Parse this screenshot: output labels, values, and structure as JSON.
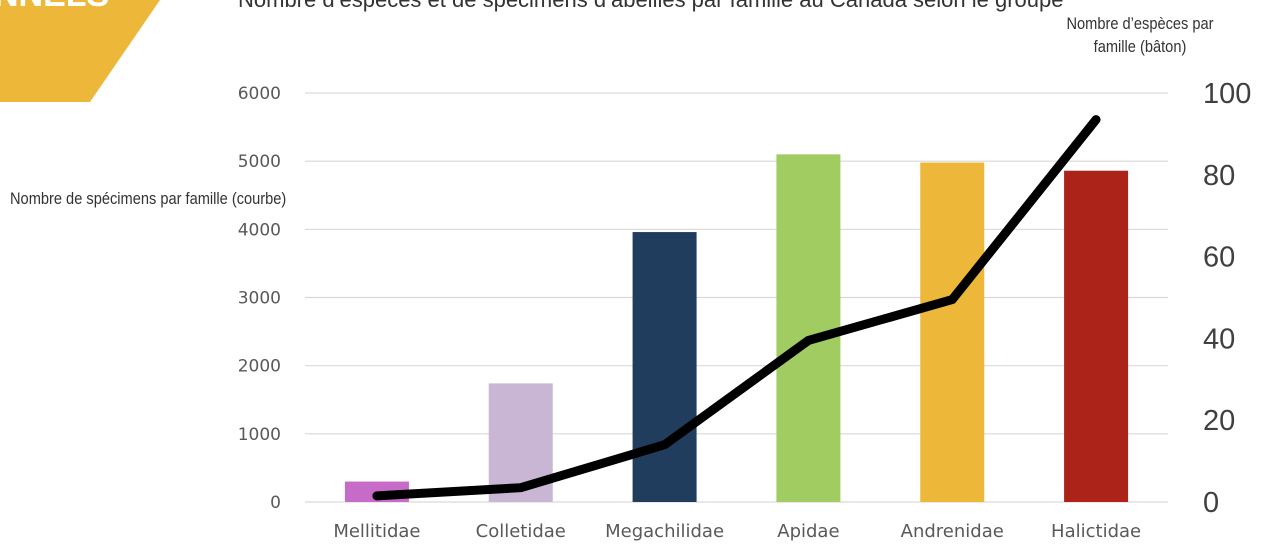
{
  "banner": {
    "text": "NNELS",
    "color": "#EDB83A"
  },
  "header_fragment": "Nombre d’espèces et de spécimens d’abeilles par famille au Canada selon le groupe",
  "chart_data": {
    "type": "bar",
    "categories": [
      "Mellitidae",
      "Colletidae",
      "Megachilidae",
      "Apidae",
      "Andrenidae",
      "Halictidae"
    ],
    "series": [
      {
        "type": "bar",
        "axis": "left",
        "values": [
          300,
          1740,
          3960,
          5100,
          4980,
          4860
        ],
        "colors": [
          "#C76BC9",
          "#C9B5D4",
          "#213D5E",
          "#A0CC62",
          "#EDB83A",
          "#AC2319"
        ]
      },
      {
        "type": "line",
        "axis": "right",
        "values": [
          1.5,
          3.5,
          14,
          39.5,
          49.5,
          93.5
        ],
        "color": "#000000"
      }
    ],
    "left_axis": {
      "label": "Nombre de spécimens par famille (courbe)",
      "ylim": [
        0,
        6000
      ],
      "ticks": [
        0,
        1000,
        2000,
        3000,
        4000,
        5000,
        6000
      ]
    },
    "right_axis": {
      "label": "Nombre d’espèces par famille (bâton)",
      "ylim": [
        0,
        100
      ],
      "ticks": [
        0,
        20,
        40,
        60,
        80,
        100
      ]
    },
    "grid": true
  }
}
